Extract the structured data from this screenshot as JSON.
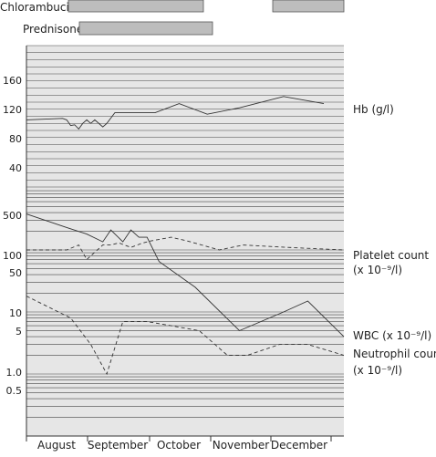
{
  "treatments": [
    {
      "name": "Chlorambucil",
      "periods": [
        [
          "Aug",
          "Oct end"
        ],
        [
          "Dec mid",
          "Dec end"
        ]
      ]
    },
    {
      "name": "Prednisone",
      "periods": [
        [
          "Sep",
          "Nov"
        ]
      ]
    }
  ],
  "chart_data": [
    {
      "type": "line",
      "panel": "Hb",
      "series": [
        {
          "name": "Hb (g/l)",
          "style": "solid",
          "x": [
            0.0,
            0.9,
            1.0,
            1.1,
            1.2,
            1.3,
            1.4,
            1.5,
            1.6,
            1.7,
            1.9,
            2.0,
            2.2,
            2.5,
            3.2,
            3.8,
            4.5,
            5.3,
            6.4,
            7.4
          ],
          "y": [
            95,
            97,
            95,
            87,
            88,
            82,
            90,
            95,
            90,
            95,
            85,
            90,
            105,
            105,
            105,
            118,
            103,
            112,
            128,
            118
          ]
        }
      ],
      "yticks": [
        40,
        80,
        120,
        160
      ],
      "ylim": [
        0,
        200
      ]
    },
    {
      "type": "line",
      "panel": "counts",
      "scale": "log",
      "series": [
        {
          "name": "Platelet count",
          "unit": "(x 10⁻⁹/l)",
          "style": "solid",
          "x": [
            0.0,
            1.0,
            1.5,
            1.9,
            2.1,
            2.4,
            2.6,
            2.8,
            3.0,
            3.3,
            4.2,
            5.3,
            6.4,
            7.0,
            7.9
          ],
          "y": [
            380,
            230,
            180,
            135,
            210,
            135,
            210,
            160,
            160,
            65,
            25,
            5,
            10,
            15,
            4
          ]
        },
        {
          "name": "Platelet count (dashed)",
          "style": "dashed",
          "x": [
            0.0,
            1.0,
            1.3,
            1.5,
            1.9,
            2.1,
            2.3,
            2.6,
            2.9,
            3.1,
            3.6,
            4.0,
            4.8,
            5.4,
            6.5,
            7.9
          ],
          "y": [
            100,
            100,
            120,
            70,
            120,
            120,
            130,
            110,
            130,
            140,
            160,
            140,
            100,
            120,
            110,
            100
          ]
        },
        {
          "name": "Neutrophil count",
          "unit": "(x 10⁻⁹/l)",
          "style": "dashed",
          "x": [
            0.0,
            1.1,
            1.6,
            2.0,
            2.4,
            3.0,
            3.6,
            4.3,
            5.0,
            5.5,
            6.3,
            7.0,
            7.9
          ],
          "y": [
            18,
            8,
            3,
            1,
            7,
            7,
            6,
            5,
            2,
            2,
            3,
            3,
            2
          ]
        }
      ],
      "yticks": [
        "500",
        "100",
        "50",
        "10",
        "5",
        "1.0",
        "0.5"
      ],
      "tick_values": [
        500,
        100,
        50,
        10,
        5,
        1.0,
        0.5
      ],
      "ylim": [
        0.1,
        1000
      ]
    }
  ],
  "labels": {
    "hb": "Hb (g/l)",
    "platelet": "Platelet count",
    "platelet_unit": "(x 10⁻⁹/l)",
    "wbc": "WBC (x 10⁻⁹/l)",
    "neutrophil": "Neutrophil count",
    "neutrophil_unit": "(x 10⁻⁹/l)"
  },
  "months": [
    "August",
    "September",
    "October",
    "November",
    "December"
  ]
}
